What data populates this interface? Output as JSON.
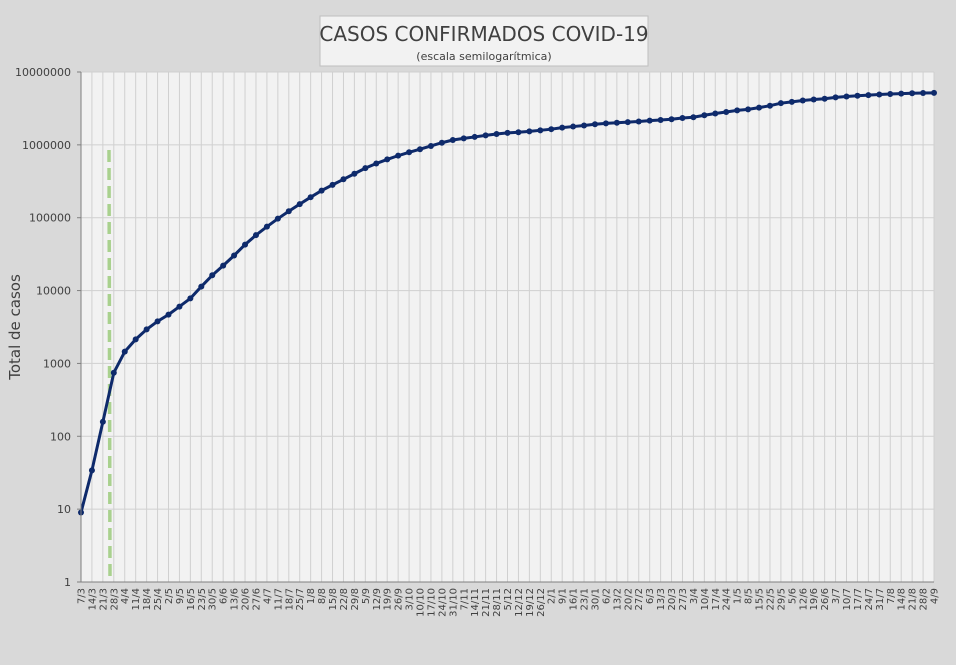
{
  "chart_data": {
    "type": "line",
    "title": "CASOS CONFIRMADOS COVID-19",
    "subtitle": "(escala semilogarítmica)",
    "y_label": "Total de casos",
    "log_scale": true,
    "grid": true,
    "color": "#0e2a6b",
    "categories": [
      "7/3",
      "14/3",
      "21/3",
      "28/3",
      "4/4",
      "11/4",
      "18/4",
      "25/4",
      "2/5",
      "9/5",
      "16/5",
      "23/5",
      "30/5",
      "6/6",
      "13/6",
      "20/6",
      "27/6",
      "4/7",
      "11/7",
      "18/7",
      "25/7",
      "1/8",
      "8/8",
      "15/8",
      "22/8",
      "29/8",
      "5/9",
      "12/9",
      "19/9",
      "26/9",
      "3/10",
      "10/10",
      "17/10",
      "24/10",
      "31/10",
      "7/11",
      "14/11",
      "21/11",
      "28/11",
      "5/12",
      "12/12",
      "19/12",
      "26/12",
      "2/1",
      "9/1",
      "16/1",
      "23/1",
      "30/1",
      "6/2",
      "13/2",
      "20/2",
      "27/2",
      "6/3",
      "13/3",
      "20/3",
      "27/3",
      "3/4",
      "10/4",
      "17/4",
      "24/4",
      "1/5",
      "8/5",
      "15/5",
      "22/5",
      "29/5",
      "5/6",
      "12/6",
      "19/6",
      "26/6",
      "3/7",
      "10/7",
      "17/7",
      "24/7",
      "31/7",
      "7/8",
      "14/8",
      "21/8",
      "28/8",
      "4/9"
    ],
    "values": [
      9,
      34,
      158,
      745,
      1450,
      2140,
      2930,
      3780,
      4680,
      6030,
      7800,
      11350,
      16200,
      22000,
      30300,
      42800,
      57700,
      75400,
      97000,
      122500,
      153500,
      191300,
      235700,
      282400,
      336800,
      401200,
      478800,
      555500,
      631000,
      711300,
      790800,
      871500,
      965600,
      1069000,
      1166000,
      1228800,
      1284500,
      1349400,
      1407300,
      1459800,
      1489300,
      1531400,
      1583300,
      1640700,
      1722000,
      1783000,
      1843000,
      1915000,
      1970000,
      2013000,
      2050000,
      2093000,
      2150000,
      2192000,
      2250000,
      2333000,
      2393000,
      2551000,
      2694000,
      2824000,
      2977000,
      3071000,
      3242000,
      3447000,
      3732000,
      3884000,
      4066000,
      4193000,
      4298000,
      4491000,
      4604000,
      4729000,
      4812000,
      4905000,
      4982000,
      5046000,
      5107000,
      5140000,
      5178000
    ],
    "ylim": [
      1,
      10000000
    ],
    "yticks": [
      1,
      10,
      100,
      1000,
      10000,
      100000,
      1000000,
      10000000
    ]
  }
}
